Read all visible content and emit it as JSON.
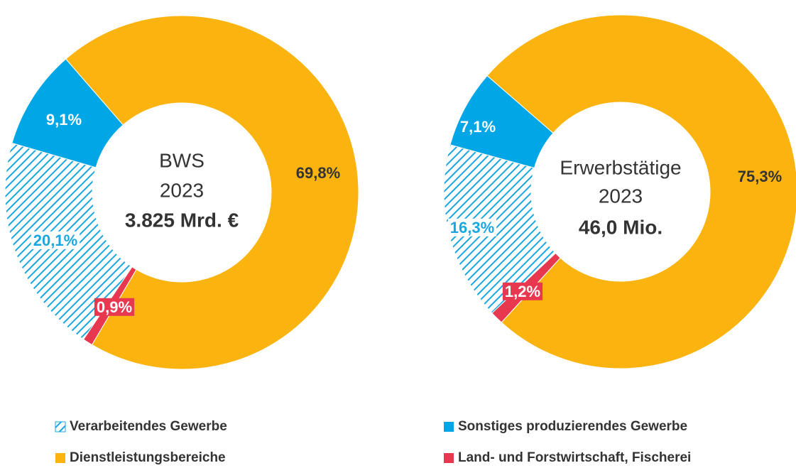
{
  "legend": [
    {
      "name": "Verarbeitendes Gewerbe",
      "color": "#1aa7e0",
      "pattern": "hatched"
    },
    {
      "name": "Sonstiges produzierendes Gewerbe",
      "color": "#00a6e6"
    },
    {
      "name": "Dienstleistungsbereiche",
      "color": "#fbb40f"
    },
    {
      "name": "Land- und Forstwirtschaft, Fischerei",
      "color": "#e8384f"
    }
  ],
  "chart_data": [
    {
      "type": "pie",
      "center_lines": [
        "BWS",
        "2023",
        "3.825 Mrd. €"
      ],
      "values": [
        20.1,
        9.1,
        69.8,
        0.9
      ],
      "value_labels": [
        "20,1%",
        "9,1%",
        "69,8%",
        "0,9%"
      ]
    },
    {
      "type": "pie",
      "center_lines": [
        "Erwerbstätige",
        "2023",
        "46,0 Mio."
      ],
      "values": [
        16.3,
        7.1,
        75.3,
        1.2
      ],
      "value_labels": [
        "16,3%",
        "7,1%",
        "75,3%",
        "1,2%"
      ]
    }
  ]
}
